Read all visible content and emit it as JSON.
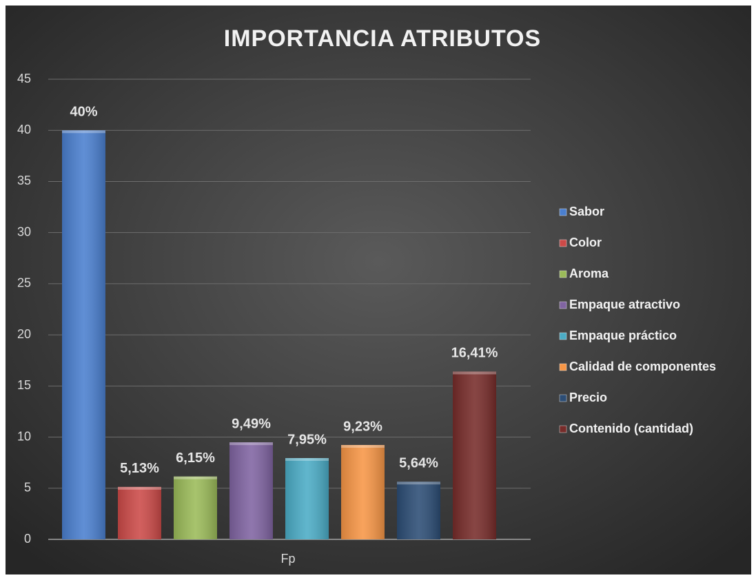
{
  "chart_data": {
    "type": "bar",
    "title": "IMPORTANCIA ATRIBUTOS",
    "categories": [
      "Fp"
    ],
    "series": [
      {
        "name": "Sabor",
        "color": "#4a7fcf",
        "values": [
          40
        ],
        "value_labels": [
          "40%"
        ]
      },
      {
        "name": "Color",
        "color": "#cc4a48",
        "values": [
          5.13
        ],
        "value_labels": [
          "5,13%"
        ]
      },
      {
        "name": "Aroma",
        "color": "#9bbb59",
        "values": [
          6.15
        ],
        "value_labels": [
          "6,15%"
        ]
      },
      {
        "name": "Empaque atractivo",
        "color": "#8064a2",
        "values": [
          9.49
        ],
        "value_labels": [
          "9,49%"
        ]
      },
      {
        "name": "Empaque práctico",
        "color": "#4bacc6",
        "values": [
          7.95
        ],
        "value_labels": [
          "7,95%"
        ]
      },
      {
        "name": "Calidad de componentes",
        "color": "#f79646",
        "values": [
          9.23
        ],
        "value_labels": [
          "9,23%"
        ]
      },
      {
        "name": "Precio",
        "color": "#2c4d75",
        "values": [
          5.64
        ],
        "value_labels": [
          "5,64%"
        ]
      },
      {
        "name": "Contenido (cantidad)",
        "color": "#772c2a",
        "values": [
          16.41
        ],
        "value_labels": [
          "16,41%"
        ]
      }
    ],
    "ylim": [
      0,
      45
    ],
    "yticks": [
      0,
      5,
      10,
      15,
      20,
      25,
      30,
      35,
      40,
      45
    ],
    "grid": true,
    "legend": "right"
  }
}
